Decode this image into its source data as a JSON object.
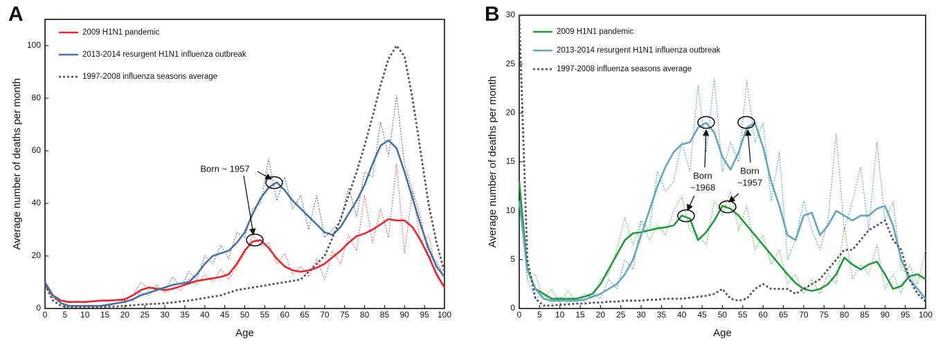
{
  "chart_data": [
    {
      "type": "line",
      "panel_label": "A",
      "x_label": "Age",
      "y_label": "Average number of deaths per month",
      "x": [
        0,
        2,
        4,
        6,
        8,
        10,
        12,
        14,
        16,
        18,
        20,
        22,
        24,
        26,
        28,
        30,
        32,
        34,
        36,
        38,
        40,
        42,
        44,
        46,
        48,
        50,
        52,
        54,
        56,
        58,
        60,
        62,
        64,
        66,
        68,
        70,
        72,
        74,
        76,
        78,
        80,
        82,
        84,
        86,
        88,
        90,
        92,
        94,
        96,
        98,
        100
      ],
      "xlim": [
        0,
        100
      ],
      "xticks": [
        0,
        5,
        10,
        15,
        20,
        25,
        30,
        35,
        40,
        45,
        50,
        55,
        60,
        65,
        70,
        75,
        80,
        85,
        90,
        95,
        100
      ],
      "ylim": [
        0,
        110
      ],
      "yticks": [
        0,
        20,
        40,
        60,
        80,
        100
      ],
      "annotations": [
        [
          "Born ~ 1957"
        ]
      ],
      "series": [
        {
          "color": "#ec4b4e",
          "style": "dotted",
          "values": [
            9,
            4,
            3,
            2,
            3,
            2,
            3,
            3,
            3,
            3,
            3,
            5,
            10,
            7,
            9,
            6,
            8,
            7,
            11,
            9,
            13,
            10,
            15,
            11,
            16,
            21,
            28,
            24,
            25,
            17,
            21,
            13,
            16,
            12,
            19,
            11,
            22,
            17,
            28,
            22,
            43,
            25,
            38,
            27,
            55,
            21,
            45,
            25,
            28,
            14,
            8
          ]
        },
        {
          "color": "#3b63a8",
          "style": "dotted",
          "values": [
            10,
            4,
            2,
            1,
            1,
            1,
            1,
            1,
            1,
            2,
            3,
            3,
            6,
            5,
            8,
            7,
            12,
            8,
            14,
            11,
            20,
            17,
            24,
            19,
            29,
            27,
            38,
            40,
            57,
            41,
            50,
            38,
            43,
            30,
            43,
            27,
            30,
            33,
            46,
            35,
            52,
            50,
            71,
            58,
            81,
            55,
            45,
            35,
            20,
            18,
            12
          ]
        },
        {
          "name": "2009 H1N1 pandemic",
          "color": "#e8262b",
          "style": "solid",
          "values": [
            9,
            5,
            3,
            2.5,
            2.5,
            2.5,
            2.7,
            3,
            3,
            3.2,
            3.5,
            5,
            7,
            8,
            7.5,
            7,
            7.5,
            8.5,
            9.5,
            10.5,
            11,
            11.5,
            12,
            13,
            17,
            22,
            25.5,
            26,
            23,
            19,
            16,
            14.5,
            14,
            14.5,
            15.5,
            17,
            19.5,
            22,
            25,
            27.5,
            28.5,
            30,
            32,
            34,
            33.5,
            33.5,
            31,
            26,
            20,
            13,
            8
          ]
        },
        {
          "name": "2013-2014 resurgent H1N1 influenza outbreak",
          "color": "#4a6fa5",
          "style": "solid",
          "values": [
            10,
            5,
            2,
            1,
            1,
            1,
            1,
            1,
            1.5,
            2,
            2.5,
            3.5,
            5,
            6,
            7,
            8,
            9,
            9.5,
            10,
            13,
            17,
            20,
            21,
            22,
            25,
            29,
            36,
            42,
            46,
            48,
            45,
            41,
            38,
            35,
            32,
            29,
            28,
            31,
            36,
            41,
            47,
            55,
            62,
            64,
            61,
            52,
            42,
            32,
            23,
            16,
            12
          ]
        },
        {
          "name": "1997-2008 influenza seasons average",
          "color": "#555555",
          "style": "dotted-bold",
          "values": [
            9,
            3,
            1,
            0.5,
            0.5,
            0.5,
            0.5,
            0.6,
            0.7,
            0.8,
            1,
            1.2,
            1.5,
            1.7,
            1.8,
            2,
            2.3,
            2.7,
            3,
            3.5,
            4,
            4.5,
            5,
            6,
            7,
            7.5,
            8,
            8.5,
            9,
            9.5,
            10,
            10.5,
            11,
            14,
            17,
            20,
            27,
            34,
            43,
            52,
            62,
            73,
            85,
            95,
            100,
            96,
            80,
            60,
            40,
            25,
            14
          ]
        }
      ]
    },
    {
      "type": "line",
      "panel_label": "B",
      "x_label": "Age",
      "y_label": "Average number of deaths per month",
      "x": [
        0,
        2,
        4,
        6,
        8,
        10,
        12,
        14,
        16,
        18,
        20,
        22,
        24,
        26,
        28,
        30,
        32,
        34,
        36,
        38,
        40,
        42,
        44,
        46,
        48,
        50,
        52,
        54,
        56,
        58,
        60,
        62,
        64,
        66,
        68,
        70,
        72,
        74,
        76,
        78,
        80,
        82,
        84,
        86,
        88,
        90,
        92,
        94,
        96,
        98,
        100
      ],
      "xlim": [
        0,
        100
      ],
      "xticks": [
        0,
        5,
        10,
        15,
        20,
        25,
        30,
        35,
        40,
        45,
        50,
        55,
        60,
        65,
        70,
        75,
        80,
        85,
        90,
        95,
        100
      ],
      "ylim": [
        0,
        30
      ],
      "yticks": [
        0,
        5,
        10,
        15,
        20,
        25,
        30
      ],
      "annotations": [
        [
          "Born",
          "~1968"
        ],
        [
          "Born",
          "~1957"
        ]
      ],
      "series": [
        {
          "color": "#4fb548",
          "style": "dotted",
          "values": [
            13,
            3,
            3.5,
            1,
            2,
            0.5,
            1.8,
            0.7,
            1.5,
            1,
            3,
            3.5,
            6,
            9.3,
            6.5,
            9,
            7,
            8.5,
            7.5,
            10,
            11.5,
            8,
            7.5,
            6.5,
            11,
            9.5,
            12,
            8,
            10.5,
            6,
            7.5,
            4.5,
            6,
            2.5,
            3.5,
            1.5,
            3,
            1.5,
            3.5,
            2.5,
            8.3,
            3,
            4.5,
            3.5,
            6.5,
            2,
            3.5,
            1.5,
            4.5,
            2.5,
            6
          ]
        },
        {
          "color": "#3f97bb",
          "style": "dotted",
          "values": [
            11,
            3,
            1,
            1.5,
            0.5,
            1.2,
            0.5,
            1,
            0.7,
            1.5,
            1,
            3,
            2,
            5,
            4,
            9,
            8,
            14,
            12,
            13,
            17,
            14,
            22.8,
            16,
            23.5,
            14,
            17,
            15,
            23.3,
            17,
            19,
            11,
            16,
            5,
            7,
            11,
            8,
            6,
            9,
            17.8,
            8,
            11,
            14.5,
            8,
            17,
            9,
            11,
            4,
            3.5,
            2,
            0.5
          ]
        },
        {
          "name": "2009 H1N1 pandemic",
          "color": "#1f9a3a",
          "style": "solid",
          "values": [
            13,
            4,
            2,
            1.5,
            1,
            1,
            1,
            1,
            1.2,
            1.5,
            2.5,
            4,
            5.5,
            7,
            7.7,
            7.8,
            8,
            8.2,
            8.3,
            8.5,
            9.5,
            9.2,
            7,
            7.8,
            9,
            10.5,
            10.2,
            9.5,
            8.5,
            7.5,
            6.5,
            5.5,
            4.5,
            3.5,
            2.6,
            2,
            1.8,
            2,
            2.5,
            3.5,
            5.2,
            4.5,
            4,
            4.5,
            4.8,
            3.5,
            2,
            2.3,
            3.3,
            3.5,
            3
          ]
        },
        {
          "name": "2013-2014 resurgent H1N1 influenza outbreak",
          "color": "#63a6c0",
          "style": "solid",
          "values": [
            11,
            4,
            2,
            1,
            0.8,
            0.8,
            0.8,
            0.8,
            0.9,
            1.2,
            1.5,
            2,
            2.5,
            3.5,
            5,
            7.5,
            10,
            12.5,
            14.5,
            16,
            16.8,
            17,
            18.5,
            19,
            18,
            15.5,
            14.2,
            16,
            18.5,
            19,
            16.5,
            13,
            10.5,
            7.5,
            7,
            9.5,
            9.8,
            7.5,
            8.5,
            10,
            9.5,
            9,
            9.5,
            9.5,
            10.2,
            10.5,
            8.5,
            5,
            3,
            2,
            1
          ]
        },
        {
          "name": "1997-2008 influenza seasons average",
          "color": "#555555",
          "style": "dotted-bold",
          "values": [
            30,
            5,
            1,
            0.3,
            0.3,
            0.4,
            0.4,
            0.5,
            0.5,
            0.6,
            0.6,
            0.7,
            0.7,
            0.8,
            0.8,
            0.8,
            0.9,
            0.9,
            1,
            1,
            1,
            1.1,
            1.2,
            1.3,
            1.5,
            2,
            1,
            0.8,
            1,
            2,
            2.5,
            2,
            2,
            2,
            1.5,
            2,
            2.5,
            3,
            4,
            5,
            6,
            6,
            7,
            8,
            8.5,
            9,
            7,
            6,
            3,
            1.5,
            0.7
          ]
        }
      ]
    }
  ]
}
